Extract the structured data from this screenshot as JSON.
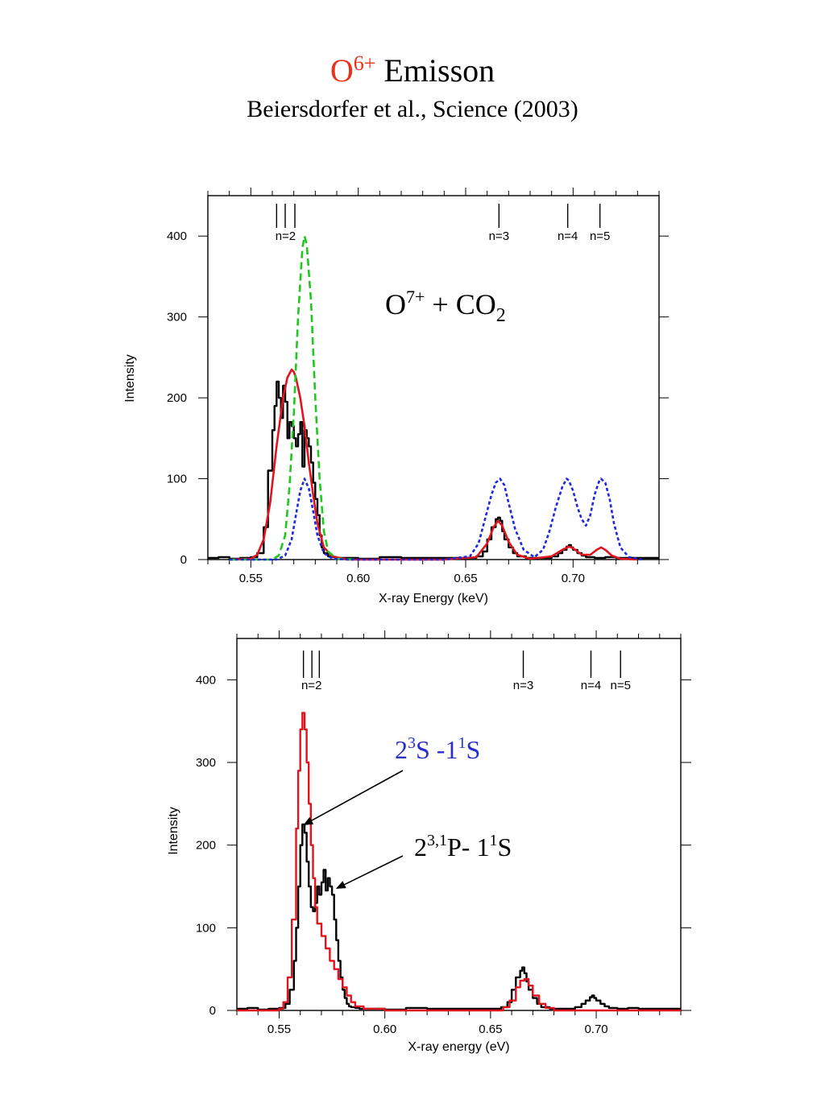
{
  "header": {
    "title_symbol": "O",
    "title_charge": "6+",
    "title_word": "Emisson",
    "subtitle": "Beiersdorfer  et al.,  Science (2003)"
  },
  "colors": {
    "data": "#000000",
    "model_red": "#e0141e",
    "model_green": "#1ec81e",
    "model_blue": "#1e28dc",
    "label_blue": "#2830c8"
  },
  "chart_data": [
    {
      "type": "line",
      "title": "",
      "annotation": {
        "base": "O",
        "sup": "7+",
        "middle": " + CO",
        "sub": "2"
      },
      "xlabel": "X-ray Energy (keV)",
      "ylabel": "Intensity",
      "xlim": [
        0.53,
        0.74
      ],
      "ylim": [
        0,
        450
      ],
      "x_ticks": [
        "0.55",
        "0.60",
        "0.65",
        "0.70"
      ],
      "y_ticks": [
        "0",
        "100",
        "200",
        "300",
        "400"
      ],
      "line_labels": [
        "n=2",
        "n=3",
        "n=4",
        "n=5"
      ],
      "line_markers": {
        "n=2": [
          0.562,
          0.566,
          0.5705
        ],
        "n=3": [
          0.6655
        ],
        "n=4": [
          0.6975
        ],
        "n=5": [
          0.7125
        ]
      },
      "series": [
        {
          "color": "#000000",
          "style": "step",
          "x": [
            0.53,
            0.535,
            0.54,
            0.545,
            0.55,
            0.553,
            0.556,
            0.558,
            0.56,
            0.561,
            0.562,
            0.563,
            0.564,
            0.565,
            0.566,
            0.567,
            0.568,
            0.569,
            0.57,
            0.571,
            0.572,
            0.573,
            0.574,
            0.575,
            0.576,
            0.577,
            0.578,
            0.579,
            0.58,
            0.581,
            0.582,
            0.583,
            0.584,
            0.586,
            0.588,
            0.59,
            0.6,
            0.61,
            0.62,
            0.63,
            0.64,
            0.65,
            0.655,
            0.658,
            0.66,
            0.662,
            0.664,
            0.665,
            0.666,
            0.667,
            0.668,
            0.67,
            0.672,
            0.674,
            0.678,
            0.684,
            0.69,
            0.693,
            0.695,
            0.697,
            0.698,
            0.699,
            0.7,
            0.702,
            0.704,
            0.706,
            0.71,
            0.715,
            0.72,
            0.73,
            0.74
          ],
          "y": [
            2,
            3,
            1,
            2,
            3,
            8,
            40,
            110,
            160,
            190,
            220,
            200,
            175,
            215,
            195,
            150,
            170,
            165,
            150,
            140,
            155,
            170,
            115,
            160,
            150,
            140,
            120,
            95,
            75,
            55,
            30,
            15,
            8,
            4,
            3,
            2,
            1,
            3,
            2,
            2,
            2,
            2,
            4,
            10,
            25,
            40,
            50,
            52,
            48,
            35,
            25,
            15,
            8,
            4,
            2,
            2,
            4,
            8,
            12,
            16,
            18,
            15,
            12,
            8,
            5,
            3,
            2,
            3,
            2,
            2,
            2
          ]
        },
        {
          "color": "#e0141e",
          "style": "line",
          "x": [
            0.54,
            0.55,
            0.553,
            0.556,
            0.559,
            0.562,
            0.565,
            0.567,
            0.569,
            0.57,
            0.571,
            0.573,
            0.575,
            0.577,
            0.579,
            0.581,
            0.584,
            0.588,
            0.595,
            0.64,
            0.655,
            0.66,
            0.663,
            0.665,
            0.667,
            0.67,
            0.674,
            0.68,
            0.69,
            0.695,
            0.698,
            0.7,
            0.704,
            0.708,
            0.711,
            0.713,
            0.715,
            0.718,
            0.722,
            0.73
          ],
          "y": [
            0,
            1,
            6,
            25,
            70,
            140,
            200,
            225,
            235,
            232,
            225,
            200,
            165,
            120,
            80,
            45,
            15,
            4,
            0,
            0,
            3,
            20,
            40,
            48,
            42,
            22,
            6,
            1,
            4,
            12,
            16,
            14,
            6,
            6,
            12,
            15,
            12,
            5,
            1,
            0
          ]
        },
        {
          "color": "#1ec81e",
          "style": "dashed",
          "x": [
            0.54,
            0.56,
            0.563,
            0.566,
            0.568,
            0.57,
            0.572,
            0.574,
            0.575,
            0.576,
            0.578,
            0.58,
            0.582,
            0.584,
            0.586,
            0.59,
            0.6
          ],
          "y": [
            0,
            0,
            5,
            30,
            90,
            180,
            300,
            385,
            400,
            390,
            320,
            200,
            100,
            35,
            10,
            1,
            0
          ]
        },
        {
          "color": "#1e28dc",
          "style": "dotted",
          "x": [
            0.54,
            0.562,
            0.566,
            0.569,
            0.571,
            0.573,
            0.575,
            0.577,
            0.579,
            0.581,
            0.584,
            0.588,
            0.595,
            0.64,
            0.652,
            0.656,
            0.659,
            0.662,
            0.664,
            0.666,
            0.668,
            0.67,
            0.673,
            0.677,
            0.682,
            0.686,
            0.689,
            0.692,
            0.695,
            0.697,
            0.698,
            0.7,
            0.702,
            0.704,
            0.706,
            0.708,
            0.71,
            0.712,
            0.713,
            0.715,
            0.717,
            0.719,
            0.722,
            0.726,
            0.732
          ],
          "y": [
            0,
            0,
            5,
            25,
            55,
            85,
            100,
            88,
            60,
            30,
            8,
            1,
            0,
            0,
            4,
            20,
            50,
            80,
            95,
            100,
            92,
            70,
            38,
            12,
            3,
            12,
            35,
            65,
            90,
            100,
            98,
            85,
            65,
            50,
            42,
            55,
            80,
            96,
            100,
            95,
            75,
            45,
            15,
            3,
            0
          ]
        }
      ]
    },
    {
      "type": "line",
      "title": "",
      "xlabel": "X-ray energy (eV)",
      "ylabel": "Intensity",
      "xlim": [
        0.53,
        0.74
      ],
      "ylim": [
        0,
        450
      ],
      "x_ticks": [
        "0.55",
        "0.60",
        "0.65",
        "0.70"
      ],
      "y_ticks": [
        "0",
        "100",
        "200",
        "300",
        "400"
      ],
      "line_labels": [
        "n=2",
        "n=3",
        "n=4",
        "n=5"
      ],
      "line_markers": {
        "n=2": [
          0.5615,
          0.5655,
          0.569
        ],
        "n=3": [
          0.6655
        ],
        "n=4": [
          0.6975
        ],
        "n=5": [
          0.7115
        ]
      },
      "annotations": [
        {
          "parts": [
            "2",
            "3",
            "S -1",
            "1",
            "S"
          ],
          "color": "#2830c8",
          "arrow_to": [
            0.562,
            225
          ]
        },
        {
          "parts": [
            "2",
            "3,1",
            "P- 1",
            "1",
            "S"
          ],
          "color": "#000000",
          "arrow_to": [
            0.5775,
            148
          ]
        }
      ],
      "series": [
        {
          "color": "#000000",
          "style": "step",
          "x": [
            0.53,
            0.535,
            0.54,
            0.545,
            0.55,
            0.553,
            0.555,
            0.557,
            0.558,
            0.559,
            0.56,
            0.561,
            0.562,
            0.563,
            0.564,
            0.565,
            0.566,
            0.567,
            0.568,
            0.569,
            0.57,
            0.571,
            0.572,
            0.573,
            0.574,
            0.575,
            0.576,
            0.577,
            0.578,
            0.579,
            0.58,
            0.581,
            0.582,
            0.583,
            0.584,
            0.586,
            0.588,
            0.59,
            0.6,
            0.61,
            0.62,
            0.63,
            0.64,
            0.65,
            0.655,
            0.658,
            0.66,
            0.662,
            0.664,
            0.665,
            0.666,
            0.667,
            0.668,
            0.67,
            0.672,
            0.674,
            0.678,
            0.684,
            0.69,
            0.693,
            0.695,
            0.697,
            0.698,
            0.699,
            0.7,
            0.702,
            0.704,
            0.706,
            0.71,
            0.715,
            0.72,
            0.73,
            0.74
          ],
          "y": [
            2,
            3,
            1,
            2,
            3,
            8,
            25,
            60,
            100,
            150,
            200,
            225,
            215,
            180,
            150,
            125,
            120,
            130,
            150,
            140,
            155,
            170,
            145,
            160,
            150,
            140,
            110,
            85,
            60,
            40,
            25,
            15,
            8,
            5,
            4,
            3,
            2,
            2,
            1,
            3,
            2,
            2,
            2,
            2,
            4,
            10,
            25,
            40,
            48,
            52,
            45,
            35,
            25,
            15,
            8,
            4,
            2,
            2,
            4,
            8,
            12,
            16,
            18,
            15,
            12,
            8,
            5,
            3,
            2,
            3,
            2,
            2,
            2
          ]
        },
        {
          "color": "#e0141e",
          "style": "step",
          "x": [
            0.53,
            0.545,
            0.55,
            0.552,
            0.554,
            0.556,
            0.558,
            0.559,
            0.56,
            0.561,
            0.562,
            0.563,
            0.564,
            0.565,
            0.566,
            0.567,
            0.568,
            0.57,
            0.572,
            0.574,
            0.576,
            0.578,
            0.58,
            0.582,
            0.584,
            0.586,
            0.59,
            0.6,
            0.65,
            0.656,
            0.659,
            0.662,
            0.664,
            0.666,
            0.668,
            0.67,
            0.673,
            0.676,
            0.68,
            0.74
          ],
          "y": [
            0,
            0,
            2,
            10,
            40,
            110,
            220,
            290,
            340,
            360,
            340,
            300,
            250,
            200,
            160,
            125,
            105,
            90,
            75,
            60,
            50,
            38,
            28,
            18,
            10,
            5,
            2,
            0,
            0,
            4,
            12,
            28,
            36,
            38,
            30,
            18,
            8,
            3,
            0,
            0
          ]
        }
      ]
    }
  ]
}
